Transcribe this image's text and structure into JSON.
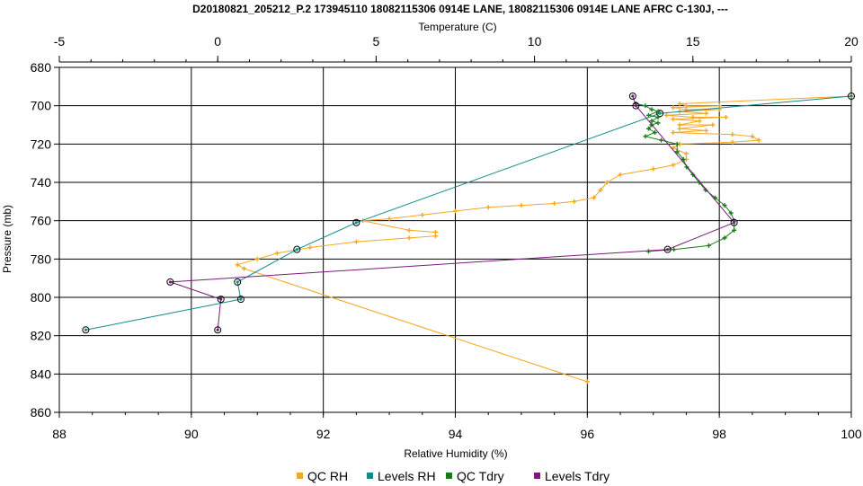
{
  "chart_data": {
    "type": "line",
    "title": "D20180821_205212_P.2 173945110 18082115306 0914E LANE, 18082115306 0914E LANE AFRC C-130J, ---",
    "x_top_label": "Temperature (C)",
    "x_bottom_label": "Relative Humidity (%)",
    "ylabel": "Pressure (mb)",
    "x_top_lim": [
      -5,
      20
    ],
    "x_top_ticks": [
      "-5",
      "0",
      "5",
      "10",
      "15",
      "20"
    ],
    "x_bottom_lim": [
      88,
      100
    ],
    "x_bottom_ticks": [
      "88",
      "90",
      "92",
      "94",
      "96",
      "98",
      "100"
    ],
    "ylim": [
      680,
      860
    ],
    "y_inverted": true,
    "y_ticks": [
      "680",
      "700",
      "720",
      "740",
      "760",
      "780",
      "800",
      "820",
      "840",
      "860"
    ],
    "grid": true,
    "legend_position": "bottom",
    "series": [
      {
        "name": "QC RH",
        "axis": "bottom",
        "color": "#f5a623",
        "marker": "plus",
        "points": [
          [
            100,
            695
          ],
          [
            97.4,
            699
          ],
          [
            97.5,
            700
          ],
          [
            98.0,
            700
          ],
          [
            97.3,
            701
          ],
          [
            97.5,
            702
          ],
          [
            98.0,
            702
          ],
          [
            97.4,
            703
          ],
          [
            97.8,
            704
          ],
          [
            97.2,
            705
          ],
          [
            97.6,
            706
          ],
          [
            98.1,
            706
          ],
          [
            97.3,
            707
          ],
          [
            97.7,
            708
          ],
          [
            97.4,
            710
          ],
          [
            97.9,
            710
          ],
          [
            97.4,
            712
          ],
          [
            97.8,
            713
          ],
          [
            97.3,
            714
          ],
          [
            98.2,
            715
          ],
          [
            98.5,
            716
          ],
          [
            98.6,
            718
          ],
          [
            98.2,
            719
          ],
          [
            97.4,
            720
          ],
          [
            97.3,
            722
          ],
          [
            97.5,
            725
          ],
          [
            97.5,
            728
          ],
          [
            97.3,
            731
          ],
          [
            97.0,
            733
          ],
          [
            96.5,
            736
          ],
          [
            96.3,
            740
          ],
          [
            96.2,
            744
          ],
          [
            96.1,
            748
          ],
          [
            95.8,
            750
          ],
          [
            95.5,
            751
          ],
          [
            95.0,
            752
          ],
          [
            94.5,
            753
          ],
          [
            94.0,
            755
          ],
          [
            93.5,
            757
          ],
          [
            93.0,
            759
          ],
          [
            92.6,
            760
          ],
          [
            93.3,
            765
          ],
          [
            93.7,
            766
          ],
          [
            93.7,
            768
          ],
          [
            93.3,
            769
          ],
          [
            92.5,
            771
          ],
          [
            91.8,
            774
          ],
          [
            91.3,
            777
          ],
          [
            91.0,
            780
          ],
          [
            90.7,
            783
          ],
          [
            90.8,
            785
          ],
          [
            96.0,
            844
          ]
        ]
      },
      {
        "name": "Levels RH",
        "axis": "bottom",
        "color": "#108a8a",
        "marker": "circle",
        "points": [
          [
            100,
            695
          ],
          [
            97.1,
            704
          ],
          [
            92.5,
            761
          ],
          [
            91.6,
            775
          ],
          [
            90.7,
            792
          ],
          [
            90.75,
            801
          ],
          [
            88.4,
            817
          ]
        ]
      },
      {
        "name": "QC Tdry",
        "axis": "top",
        "color": "#1a7a1a",
        "marker": "plus",
        "points": [
          [
            13.2,
            699
          ],
          [
            13.5,
            700
          ],
          [
            13.7,
            702
          ],
          [
            13.9,
            703
          ],
          [
            13.6,
            705
          ],
          [
            13.9,
            706
          ],
          [
            13.7,
            708
          ],
          [
            13.9,
            709
          ],
          [
            13.7,
            710
          ],
          [
            13.6,
            712
          ],
          [
            13.8,
            714
          ],
          [
            13.5,
            716
          ],
          [
            14.0,
            718
          ],
          [
            14.5,
            720
          ],
          [
            14.5,
            724
          ],
          [
            14.7,
            728
          ],
          [
            14.8,
            732
          ],
          [
            15.0,
            736
          ],
          [
            15.2,
            740
          ],
          [
            15.4,
            744
          ],
          [
            15.7,
            748
          ],
          [
            16.0,
            752
          ],
          [
            16.2,
            756
          ],
          [
            16.3,
            760
          ],
          [
            16.3,
            765
          ],
          [
            16.0,
            769
          ],
          [
            15.5,
            773
          ],
          [
            14.4,
            775
          ],
          [
            13.6,
            776
          ]
        ]
      },
      {
        "name": "Levels Tdry",
        "axis": "top",
        "color": "#7a1a7a",
        "marker": "circle",
        "points": [
          [
            13.1,
            695
          ],
          [
            13.2,
            700
          ],
          [
            16.3,
            761
          ],
          [
            14.2,
            775
          ],
          [
            -1.5,
            792
          ],
          [
            0.1,
            801
          ],
          [
            0.0,
            817
          ]
        ]
      }
    ]
  }
}
